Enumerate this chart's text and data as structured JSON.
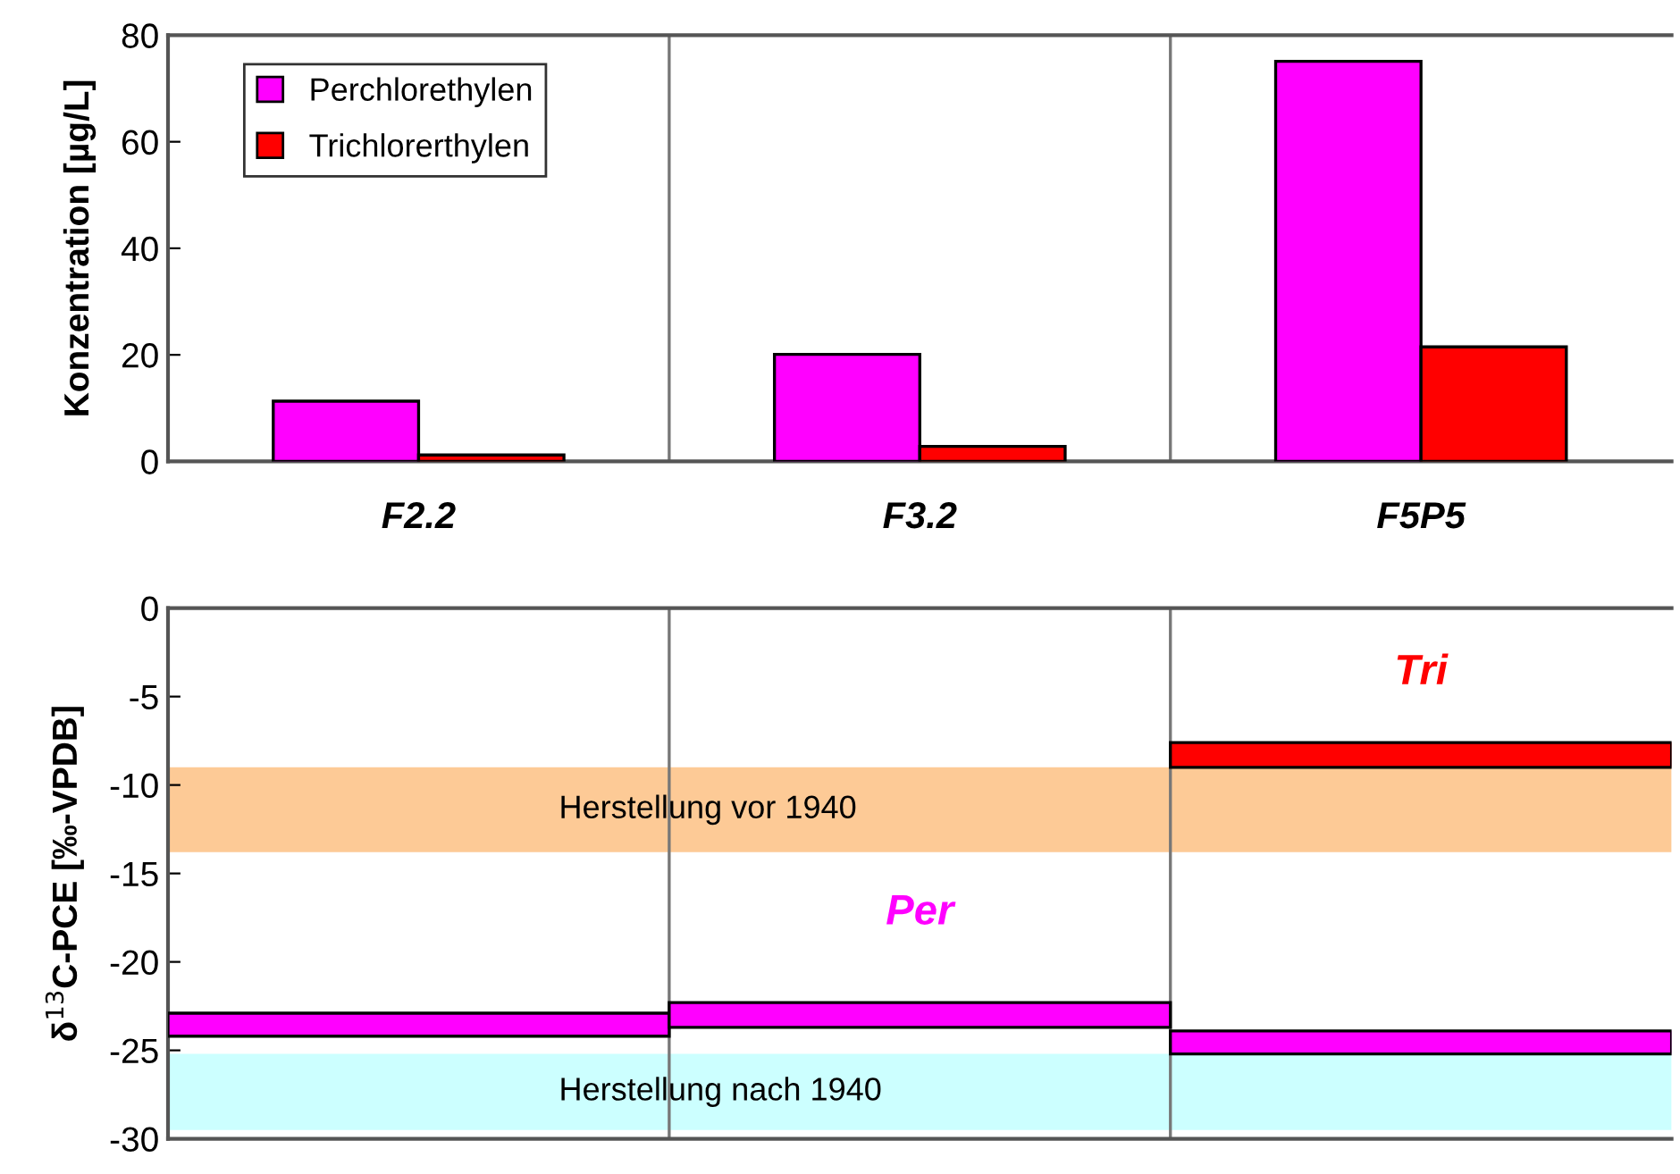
{
  "chart_data": [
    {
      "type": "bar",
      "ylabel": "Konzentration [µg/L]",
      "categories": [
        "F2.2",
        "F3.2",
        "F5P5"
      ],
      "series": [
        {
          "name": "Perchlorethylen",
          "color": "#ff00ff",
          "values": [
            11.3,
            20.1,
            75.1
          ]
        },
        {
          "name": "Trichlorerthylen",
          "color": "#ff0000",
          "values": [
            1.2,
            2.8,
            21.5
          ]
        }
      ],
      "ylim": [
        0,
        80
      ],
      "yticks": [
        0,
        20,
        40,
        60,
        80
      ],
      "grid": "x",
      "legend": "top left"
    },
    {
      "type": "bar",
      "ylabel": "δ$^{13}$C-PCE [‰-VPDB]",
      "categories": [
        null,
        null,
        null
      ],
      "series": [
        {
          "name": "Per",
          "color": "#ff00ff",
          "base": [
            -24.2,
            -23.7,
            -25.2
          ],
          "values": [
            1.3,
            1.4,
            1.3
          ]
        },
        {
          "name": "Tri",
          "color": "#ff0000",
          "base": [
            null,
            null,
            -9.0
          ],
          "values": [
            null,
            null,
            1.4
          ]
        }
      ],
      "ylim": [
        -30,
        0
      ],
      "yticks": [
        {
          "value": 0,
          "label": "0"
        },
        {
          "value": -5,
          "label": "-5"
        },
        {
          "value": -10,
          "label": "-10"
        },
        {
          "value": -15,
          "label": "-15"
        },
        {
          "value": -20,
          "label": "-20"
        },
        {
          "value": -25,
          "label": "-25"
        },
        {
          "value": -30,
          "label": "-30"
        }
      ],
      "bands": [
        {
          "axis": "y",
          "from": -13.8,
          "to": -9.0,
          "label": "Herstellung vor 1940",
          "color": "#fdca96"
        },
        {
          "axis": "y",
          "from": -29.5,
          "to": -25.2,
          "label": "Herstellung nach 1940",
          "color": "#ccffff"
        }
      ],
      "grid": "x",
      "tick_labels": "y",
      "legend": false
    }
  ]
}
